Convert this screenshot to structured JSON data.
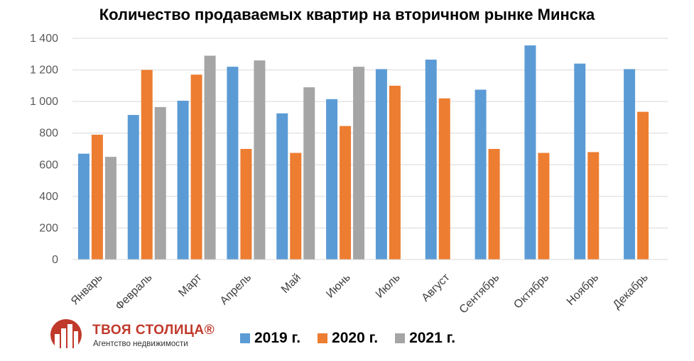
{
  "chart_data": {
    "type": "bar",
    "title": "Количество продаваемых квартир на вторичном рынке Минска",
    "categories": [
      "Январь",
      "Февраль",
      "Март",
      "Апрель",
      "Май",
      "Июнь",
      "Июль",
      "Август",
      "Сентябрь",
      "Октябрь",
      "Ноябрь",
      "Декабрь"
    ],
    "series": [
      {
        "name": "2019 г.",
        "color": "#5b9bd5",
        "values": [
          670,
          915,
          1005,
          1220,
          925,
          1015,
          1205,
          1265,
          1075,
          1355,
          1240,
          1205
        ]
      },
      {
        "name": "2020 г.",
        "color": "#ed7d31",
        "values": [
          790,
          1200,
          1170,
          700,
          675,
          845,
          1100,
          1020,
          700,
          675,
          680,
          935
        ]
      },
      {
        "name": "2021 г.",
        "color": "#a5a5a5",
        "values": [
          650,
          965,
          1290,
          1260,
          1090,
          1220,
          null,
          null,
          null,
          null,
          null,
          null
        ]
      }
    ],
    "yticks": [
      "0",
      "200",
      "400",
      "600",
      "800",
      "1 000",
      "1 200",
      "1 400"
    ],
    "ylim": [
      0,
      1400
    ],
    "xlabel": "",
    "ylabel": "",
    "grid": true,
    "legend": "bottom"
  },
  "brand": {
    "name": "ТВОЯ СТОЛИЦА®",
    "subtitle": "Агентство недвижимости",
    "color": "#c0392b"
  }
}
